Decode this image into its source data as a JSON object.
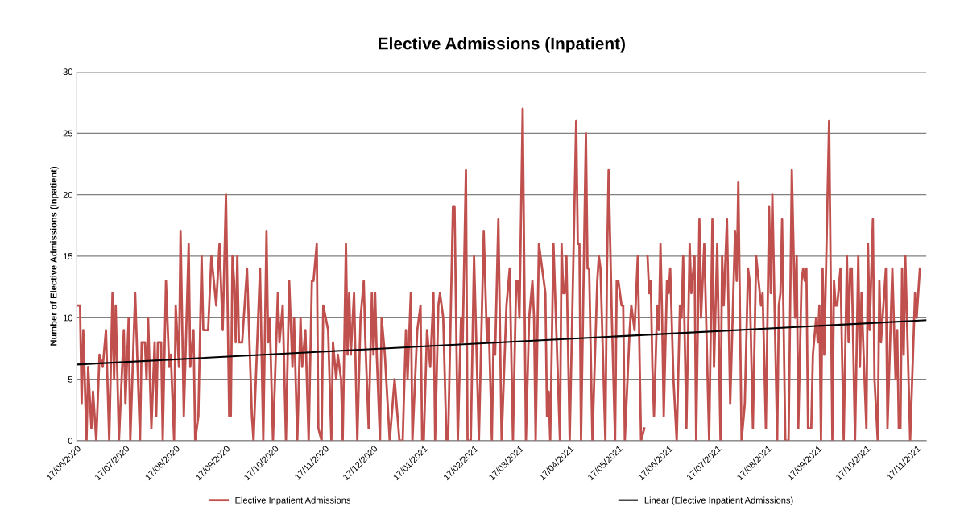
{
  "chart_data": {
    "type": "line",
    "title": "Elective Admissions (Inpatient)",
    "ylabel": "Number of Elective Admissions (Inpatient)",
    "xlim": [
      "2020-06-17",
      "2021-11-23"
    ],
    "ylim": [
      0,
      30
    ],
    "yticks": [
      0,
      5,
      10,
      15,
      20,
      25,
      30
    ],
    "xticks": [
      {
        "value": "2020-06-17",
        "label": "17/06/2020"
      },
      {
        "value": "2020-07-17",
        "label": "17/07/2020"
      },
      {
        "value": "2020-08-17",
        "label": "17/08/2020"
      },
      {
        "value": "2020-09-17",
        "label": "17/09/2020"
      },
      {
        "value": "2020-10-17",
        "label": "17/10/2020"
      },
      {
        "value": "2020-11-17",
        "label": "17/11/2020"
      },
      {
        "value": "2020-12-17",
        "label": "17/12/2020"
      },
      {
        "value": "2021-01-17",
        "label": "17/01/2021"
      },
      {
        "value": "2021-02-17",
        "label": "17/02/2021"
      },
      {
        "value": "2021-03-17",
        "label": "17/03/2021"
      },
      {
        "value": "2021-04-17",
        "label": "17/04/2021"
      },
      {
        "value": "2021-05-17",
        "label": "17/05/2021"
      },
      {
        "value": "2021-06-17",
        "label": "17/06/2021"
      },
      {
        "value": "2021-07-17",
        "label": "17/07/2021"
      },
      {
        "value": "2021-08-17",
        "label": "17/08/2021"
      },
      {
        "value": "2021-09-17",
        "label": "17/09/2021"
      },
      {
        "value": "2021-10-17",
        "label": "17/10/2021"
      },
      {
        "value": "2021-11-17",
        "label": "17/11/2021"
      }
    ],
    "grid": "y",
    "legend": "bottom",
    "series": [
      {
        "name": "Elective Inpatient Admissions",
        "color": "#c0504d",
        "x": [
          "2020-06-18",
          "2020-06-19",
          "2020-06-20",
          "2020-06-21",
          "2020-06-23",
          "2020-06-24",
          "2020-06-26",
          "2020-06-27",
          "2020-06-29",
          "2020-07-01",
          "2020-07-03",
          "2020-07-05",
          "2020-07-07",
          "2020-07-09",
          "2020-07-10",
          "2020-07-11",
          "2020-07-13",
          "2020-07-16",
          "2020-07-17",
          "2020-07-19",
          "2020-07-20",
          "2020-07-23",
          "2020-07-26",
          "2020-07-27",
          "2020-07-29",
          "2020-07-30",
          "2020-07-31",
          "2020-08-02",
          "2020-08-04",
          "2020-08-05",
          "2020-08-06",
          "2020-08-08",
          "2020-08-09",
          "2020-08-11",
          "2020-08-13",
          "2020-08-14",
          "2020-08-16",
          "2020-08-17",
          "2020-08-19",
          "2020-08-20",
          "2020-08-22",
          "2020-08-25",
          "2020-08-26",
          "2020-08-28",
          "2020-08-29",
          "2020-08-31",
          "2020-09-02",
          "2020-09-03",
          "2020-09-06",
          "2020-09-08",
          "2020-09-11",
          "2020-09-13",
          "2020-09-15",
          "2020-09-17",
          "2020-09-19",
          "2020-09-20",
          "2020-09-21",
          "2020-09-22",
          "2020-09-23",
          "2020-09-24",
          "2020-09-25",
          "2020-09-27",
          "2020-09-30",
          "2020-10-03",
          "2020-10-04",
          "2020-10-08",
          "2020-10-10",
          "2020-10-12",
          "2020-10-13",
          "2020-10-14",
          "2020-10-16",
          "2020-10-19",
          "2020-10-20",
          "2020-10-22",
          "2020-10-24",
          "2020-10-26",
          "2020-10-28",
          "2020-10-29",
          "2020-10-31",
          "2020-11-02",
          "2020-11-03",
          "2020-11-05",
          "2020-11-07",
          "2020-11-09",
          "2020-11-10",
          "2020-11-12",
          "2020-11-13",
          "2020-11-15",
          "2020-11-16",
          "2020-11-19",
          "2020-11-21",
          "2020-11-22",
          "2020-11-24",
          "2020-11-25",
          "2020-11-27",
          "2020-11-28",
          "2020-11-30",
          "2020-12-01",
          "2020-12-02",
          "2020-12-03",
          "2020-12-05",
          "2020-12-07",
          "2020-12-09",
          "2020-12-11",
          "2020-12-12",
          "2020-12-14",
          "2020-12-16",
          "2020-12-17",
          "2020-12-18",
          "2020-12-19",
          "2020-12-21",
          "2020-12-22",
          "2020-12-24",
          "2020-12-27",
          "2020-12-30",
          "2021-01-02",
          "2021-01-04",
          "2021-01-06",
          "2021-01-07",
          "2021-01-09",
          "2021-01-10",
          "2021-01-13",
          "2021-01-15",
          "2021-01-16",
          "2021-01-17",
          "2021-01-19",
          "2021-01-21",
          "2021-01-23",
          "2021-01-24",
          "2021-01-26",
          "2021-01-27",
          "2021-01-29",
          "2021-01-31",
          "2021-02-01",
          "2021-02-04",
          "2021-02-05",
          "2021-02-07",
          "2021-02-09",
          "2021-02-10",
          "2021-02-12",
          "2021-02-13",
          "2021-02-15",
          "2021-02-17",
          "2021-02-20",
          "2021-02-23",
          "2021-02-25",
          "2021-02-26",
          "2021-02-28",
          "2021-03-01",
          "2021-03-02",
          "2021-03-04",
          "2021-03-06",
          "2021-03-09",
          "2021-03-11",
          "2021-03-13",
          "2021-03-15",
          "2021-03-16",
          "2021-03-17",
          "2021-03-19",
          "2021-03-21",
          "2021-03-23",
          "2021-03-25",
          "2021-03-26",
          "2021-03-27",
          "2021-03-29",
          "2021-04-01",
          "2021-04-02",
          "2021-04-03",
          "2021-04-04",
          "2021-04-05",
          "2021-04-07",
          "2021-04-09",
          "2021-04-11",
          "2021-04-12",
          "2021-04-13",
          "2021-04-14",
          "2021-04-15",
          "2021-04-17",
          "2021-04-19",
          "2021-04-21",
          "2021-04-22",
          "2021-04-23",
          "2021-04-24",
          "2021-04-27",
          "2021-04-28",
          "2021-04-29",
          "2021-05-01",
          "2021-05-04",
          "2021-05-05",
          "2021-05-06",
          "2021-05-09",
          "2021-05-10",
          "2021-05-11",
          "2021-05-13",
          "2021-05-15",
          "2021-05-16",
          "2021-05-17",
          "2021-05-19",
          "2021-05-20",
          "2021-05-21",
          "2021-05-24",
          "2021-05-25",
          "2021-05-27",
          "2021-05-29",
          "2021-05-31",
          "2021-06-02",
          "2021-06-03",
          "2021-06-04",
          "2021-06-05",
          "2021-06-06",
          "2021-06-07",
          "2021-06-08",
          "2021-06-10",
          "2021-06-11",
          "2021-06-12",
          "2021-06-13",
          "2021-06-14",
          "2021-06-16",
          "2021-06-17",
          "2021-06-18",
          "2021-06-20",
          "2021-06-22",
          "2021-06-24",
          "2021-06-25",
          "2021-06-26",
          "2021-06-28",
          "2021-06-30",
          "2021-07-01",
          "2021-07-03",
          "2021-07-04",
          "2021-07-06",
          "2021-07-07",
          "2021-07-09",
          "2021-07-12",
          "2021-07-14",
          "2021-07-15",
          "2021-07-17",
          "2021-07-19",
          "2021-07-20",
          "2021-07-21",
          "2021-07-23",
          "2021-07-25",
          "2021-07-28",
          "2021-07-29",
          "2021-07-30",
          "2021-08-01",
          "2021-08-03",
          "2021-08-05",
          "2021-08-06",
          "2021-08-08",
          "2021-08-10",
          "2021-08-13",
          "2021-08-14",
          "2021-08-16",
          "2021-08-18",
          "2021-08-19",
          "2021-08-20",
          "2021-08-23",
          "2021-08-24",
          "2021-08-25",
          "2021-08-26",
          "2021-08-28",
          "2021-08-30",
          "2021-09-01",
          "2021-09-03",
          "2021-09-04",
          "2021-09-05",
          "2021-09-07",
          "2021-09-08",
          "2021-09-09",
          "2021-09-10",
          "2021-09-11",
          "2021-09-13",
          "2021-09-14",
          "2021-09-16",
          "2021-09-17",
          "2021-09-18",
          "2021-09-19",
          "2021-09-20",
          "2021-09-21",
          "2021-09-24",
          "2021-09-26",
          "2021-09-27",
          "2021-09-28",
          "2021-09-29",
          "2021-10-01",
          "2021-10-03",
          "2021-10-05",
          "2021-10-06",
          "2021-10-07",
          "2021-10-08",
          "2021-10-10",
          "2021-10-12",
          "2021-10-13",
          "2021-10-14",
          "2021-10-15",
          "2021-10-17",
          "2021-10-18",
          "2021-10-19",
          "2021-10-21",
          "2021-10-22",
          "2021-10-24",
          "2021-10-25",
          "2021-10-26",
          "2021-10-29",
          "2021-10-30",
          "2021-11-02",
          "2021-11-04",
          "2021-11-05",
          "2021-11-06",
          "2021-11-07",
          "2021-11-08",
          "2021-11-09",
          "2021-11-10",
          "2021-11-13",
          "2021-11-16",
          "2021-11-17",
          "2021-11-19"
        ],
        "values": [
          11,
          11,
          3,
          9,
          0,
          6,
          1,
          4,
          0,
          7,
          6,
          9,
          0,
          12,
          5,
          11,
          0,
          9,
          3,
          10,
          0,
          12,
          0,
          8,
          8,
          5,
          10,
          1,
          8,
          2,
          8,
          8,
          0,
          13,
          6,
          7,
          0,
          11,
          6,
          17,
          2,
          16,
          6,
          9,
          0,
          2,
          15,
          9,
          9,
          15,
          11,
          16,
          9,
          20,
          2,
          2,
          15,
          13,
          8,
          15,
          8,
          8,
          14,
          2,
          0,
          14,
          0,
          17,
          8,
          10,
          0,
          12,
          8,
          11,
          0,
          13,
          6,
          10,
          0,
          10,
          6,
          9,
          0,
          13,
          13,
          16,
          1,
          0,
          11,
          9,
          0,
          8,
          5,
          7,
          5,
          0,
          16,
          7,
          12,
          7,
          12,
          0,
          10,
          13,
          8,
          1,
          12,
          7,
          12,
          7,
          0,
          10,
          7,
          0,
          5,
          0,
          0,
          9,
          5,
          12,
          0,
          9,
          11,
          0,
          0,
          9,
          6,
          12,
          0,
          11,
          12,
          10,
          0,
          0,
          19,
          19,
          0,
          10,
          8,
          22,
          0,
          0,
          15,
          0,
          17,
          8,
          10,
          0,
          8,
          7,
          18,
          0,
          11,
          14,
          0,
          13,
          13,
          10,
          27,
          0,
          10,
          13,
          10,
          0,
          16,
          13,
          12,
          2,
          4,
          0,
          16,
          8,
          0,
          16,
          12,
          12,
          15,
          0,
          13,
          26,
          16,
          16,
          0,
          25,
          14,
          14,
          0,
          13,
          15,
          14,
          0,
          14,
          22,
          10,
          0,
          13,
          13,
          11,
          11,
          0,
          9,
          11,
          9,
          15,
          0,
          1,
          null,
          15,
          12,
          13,
          6,
          2,
          11,
          9,
          16,
          10,
          2,
          13,
          12,
          14,
          5,
          0,
          11,
          10,
          15,
          1,
          16,
          12,
          15,
          0,
          18,
          10,
          16,
          0,
          18,
          6,
          16,
          0,
          15,
          11,
          18,
          3,
          17,
          13,
          21,
          0,
          3,
          14,
          13,
          1,
          15,
          11,
          12,
          1,
          19,
          12,
          20,
          0,
          11,
          12,
          18,
          0,
          0,
          22,
          10,
          15,
          1,
          13,
          14,
          13,
          14,
          1,
          1,
          7,
          10,
          8,
          11,
          0,
          14,
          7,
          26,
          0,
          13,
          11,
          11,
          14,
          0,
          15,
          8,
          14,
          14,
          0,
          15,
          6,
          12,
          8,
          1,
          16,
          9,
          18,
          5,
          0,
          13,
          8,
          14,
          1,
          14,
          5,
          9,
          1,
          1,
          14,
          7,
          15,
          0,
          12,
          10,
          14
        ]
      },
      {
        "name": "Linear (Elective Inpatient Admissions)",
        "color": "#000000",
        "x": [
          "2020-06-17",
          "2021-11-23"
        ],
        "values": [
          6.2,
          9.8
        ]
      }
    ]
  }
}
